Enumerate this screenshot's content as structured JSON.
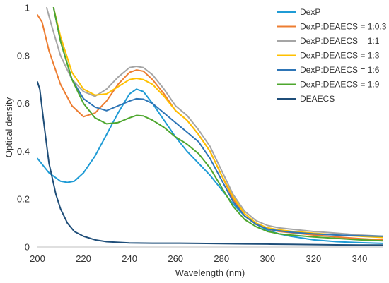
{
  "chart_data": {
    "type": "line",
    "title": "",
    "xlabel": "Wavelength (nm)",
    "ylabel": "Optical density",
    "xlim": [
      200,
      350
    ],
    "ylim": [
      0,
      1
    ],
    "xticks": [
      "200",
      "220",
      "240",
      "260",
      "280",
      "300",
      "320",
      "340"
    ],
    "yticks": [
      "0",
      "0.2",
      "0.4",
      "0.6",
      "0.8",
      "1"
    ],
    "grid": false,
    "legend_position": "top-right",
    "series": [
      {
        "name": "DexP",
        "color": "#1f9bd5",
        "x": [
          200,
          205,
          210,
          213,
          216,
          220,
          225,
          230,
          235,
          240,
          243,
          246,
          250,
          255,
          260,
          265,
          270,
          275,
          280,
          285,
          290,
          295,
          300,
          305,
          310,
          320,
          330,
          340,
          350
        ],
        "y": [
          0.37,
          0.31,
          0.275,
          0.27,
          0.275,
          0.31,
          0.38,
          0.47,
          0.56,
          0.64,
          0.66,
          0.65,
          0.6,
          0.53,
          0.46,
          0.4,
          0.35,
          0.3,
          0.24,
          0.18,
          0.13,
          0.095,
          0.07,
          0.055,
          0.045,
          0.03,
          0.022,
          0.018,
          0.015
        ]
      },
      {
        "name": "DexP:DEAECS = 1:0.3",
        "color": "#ed7d31",
        "x": [
          200,
          202,
          205,
          210,
          215,
          220,
          225,
          230,
          235,
          240,
          243,
          246,
          250,
          255,
          260,
          265,
          270,
          275,
          280,
          285,
          290,
          295,
          300,
          305,
          310,
          320,
          330,
          340,
          350
        ],
        "y": [
          0.97,
          0.94,
          0.82,
          0.68,
          0.59,
          0.545,
          0.56,
          0.61,
          0.68,
          0.73,
          0.74,
          0.735,
          0.7,
          0.64,
          0.57,
          0.53,
          0.47,
          0.4,
          0.3,
          0.2,
          0.13,
          0.095,
          0.075,
          0.065,
          0.06,
          0.05,
          0.042,
          0.035,
          0.03
        ]
      },
      {
        "name": "DexP:DEAECS = 1:1",
        "color": "#a5a5a5",
        "x": [
          204,
          206,
          210,
          215,
          220,
          225,
          230,
          235,
          240,
          243,
          246,
          250,
          255,
          260,
          265,
          270,
          275,
          280,
          285,
          290,
          295,
          300,
          305,
          310,
          320,
          330,
          340,
          350
        ],
        "y": [
          1.0,
          0.93,
          0.8,
          0.7,
          0.65,
          0.63,
          0.66,
          0.71,
          0.75,
          0.755,
          0.75,
          0.72,
          0.66,
          0.59,
          0.55,
          0.49,
          0.42,
          0.32,
          0.22,
          0.15,
          0.11,
          0.09,
          0.08,
          0.075,
          0.065,
          0.058,
          0.05,
          0.045
        ]
      },
      {
        "name": "DexP:DEAECS = 1:3",
        "color": "#ffc000",
        "x": [
          207,
          210,
          215,
          220,
          225,
          230,
          235,
          240,
          243,
          246,
          250,
          255,
          260,
          265,
          270,
          275,
          280,
          285,
          290,
          295,
          300,
          305,
          310,
          320,
          330,
          340,
          350
        ],
        "y": [
          1.0,
          0.88,
          0.73,
          0.66,
          0.635,
          0.64,
          0.67,
          0.7,
          0.705,
          0.7,
          0.68,
          0.63,
          0.57,
          0.53,
          0.47,
          0.4,
          0.3,
          0.21,
          0.14,
          0.1,
          0.08,
          0.072,
          0.066,
          0.058,
          0.05,
          0.045,
          0.04
        ]
      },
      {
        "name": "DexP:DEAECS = 1:6",
        "color": "#2e75b6",
        "x": [
          207,
          210,
          215,
          220,
          225,
          230,
          235,
          240,
          243,
          246,
          250,
          255,
          260,
          265,
          270,
          275,
          280,
          285,
          290,
          295,
          300,
          305,
          310,
          320,
          330,
          340,
          350
        ],
        "y": [
          1.0,
          0.86,
          0.7,
          0.62,
          0.585,
          0.57,
          0.59,
          0.61,
          0.62,
          0.618,
          0.6,
          0.56,
          0.52,
          0.48,
          0.44,
          0.37,
          0.28,
          0.19,
          0.13,
          0.095,
          0.075,
          0.068,
          0.062,
          0.055,
          0.05,
          0.047,
          0.045
        ]
      },
      {
        "name": "DexP:DEAECS = 1:9",
        "color": "#4ea72e",
        "x": [
          207,
          210,
          215,
          220,
          225,
          230,
          235,
          240,
          243,
          246,
          250,
          255,
          260,
          265,
          270,
          275,
          280,
          285,
          290,
          295,
          300,
          305,
          310,
          320,
          330,
          340,
          350
        ],
        "y": [
          1.0,
          0.86,
          0.7,
          0.6,
          0.54,
          0.515,
          0.52,
          0.54,
          0.55,
          0.548,
          0.53,
          0.5,
          0.46,
          0.43,
          0.39,
          0.33,
          0.25,
          0.17,
          0.115,
          0.085,
          0.065,
          0.055,
          0.05,
          0.042,
          0.036,
          0.03,
          0.026
        ]
      },
      {
        "name": "DEAECS",
        "color": "#1f4e79",
        "x": [
          200,
          201,
          203,
          205,
          208,
          210,
          213,
          216,
          220,
          225,
          230,
          240,
          250,
          260,
          270,
          280,
          290,
          300,
          310,
          320,
          330,
          340,
          350
        ],
        "y": [
          0.69,
          0.66,
          0.5,
          0.35,
          0.22,
          0.16,
          0.1,
          0.065,
          0.045,
          0.03,
          0.022,
          0.017,
          0.016,
          0.016,
          0.015,
          0.014,
          0.013,
          0.012,
          0.011,
          0.01,
          0.009,
          0.008,
          0.008
        ]
      }
    ]
  }
}
